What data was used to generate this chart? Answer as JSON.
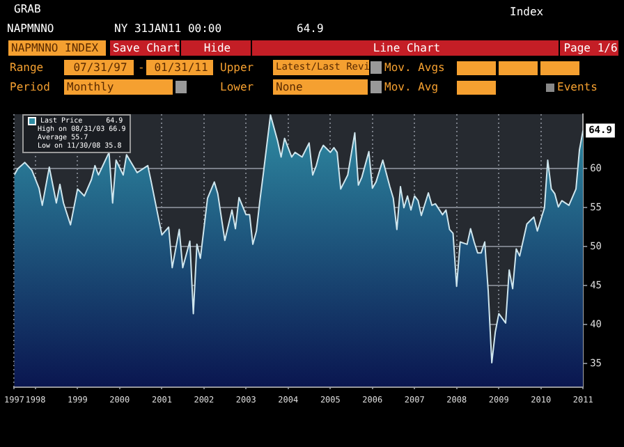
{
  "chart_data": {
    "type": "area",
    "annotations": [
      "GRAB",
      "NAPMNNO",
      "NY 31JAN11 00:00",
      "64.9",
      "Index",
      "NAPMNNO INDEX",
      "Save Chart",
      "Hide",
      "Line Chart",
      "Page 1/6",
      "Range",
      "07/31/97",
      "-",
      "01/31/11",
      "Upper",
      "Latest/Last Revi",
      "Mov. Avgs",
      "Period",
      "Monthly",
      "Lower",
      "None",
      "Mov. Avg",
      "Events",
      "64.9",
      "High on 08/31/03 66.9",
      "Average 55.7",
      "Low on 11/30/08 35.8",
      {
        "text": "64.9",
        "x": "2011-01",
        "y": 64.9
      }
    ],
    "x": [
      "1997-07",
      "1997-08",
      "1997-10",
      "1997-12",
      "1998-02",
      "1998-03",
      "1998-05",
      "1998-07",
      "1998-08",
      "1998-09",
      "1998-11",
      "1999-01",
      "1999-03",
      "1999-05",
      "1999-06",
      "1999-07",
      "1999-10",
      "1999-11",
      "1999-12",
      "2000-02",
      "2000-03",
      "2000-06",
      "2000-09",
      "2000-10",
      "2001-01",
      "2001-03",
      "2001-04",
      "2001-06",
      "2001-07",
      "2001-09",
      "2001-10",
      "2001-11",
      "2001-12",
      "2002-02",
      "2002-04",
      "2002-05",
      "2002-07",
      "2002-09",
      "2002-10",
      "2002-11",
      "2003-01",
      "2003-02",
      "2003-03",
      "2003-04",
      "2003-05",
      "2003-06",
      "2003-08",
      "2003-10",
      "2003-11",
      "2003-12",
      "2004-02",
      "2004-03",
      "2004-05",
      "2004-07",
      "2004-08",
      "2004-09",
      "2004-10",
      "2004-11",
      "2005-01",
      "2005-02",
      "2005-03",
      "2005-04",
      "2005-06",
      "2005-08",
      "2005-09",
      "2005-10",
      "2005-12",
      "2006-01",
      "2006-02",
      "2006-04",
      "2006-06",
      "2006-07",
      "2006-08",
      "2006-09",
      "2006-10",
      "2006-11",
      "2006-12",
      "2007-01",
      "2007-02",
      "2007-03",
      "2007-05",
      "2007-06",
      "2007-07",
      "2007-09",
      "2007-10",
      "2007-11",
      "2007-12",
      "2008-01",
      "2008-02",
      "2008-04",
      "2008-05",
      "2008-06",
      "2008-07",
      "2008-08",
      "2008-09",
      "2008-10",
      "2008-11",
      "2008-12",
      "2009-01",
      "2009-03",
      "2009-04",
      "2009-05",
      "2009-06",
      "2009-07",
      "2009-09",
      "2009-11",
      "2009-12",
      "2010-02",
      "2010-03",
      "2010-04",
      "2010-05",
      "2010-06",
      "2010-07",
      "2010-09",
      "2010-11",
      "2010-12",
      "2011-01"
    ],
    "series": [
      {
        "name": "Last Price",
        "color": "#2f8ca3",
        "values": [
          59.2,
          60.0,
          60.8,
          59.8,
          57.5,
          55.3,
          60.2,
          55.6,
          58.0,
          55.6,
          52.8,
          57.4,
          56.5,
          58.6,
          60.4,
          59.2,
          62.1,
          55.6,
          61.1,
          59.2,
          61.8,
          59.5,
          60.4,
          58.3,
          51.5,
          52.5,
          47.3,
          52.2,
          47.3,
          50.7,
          41.4,
          50.3,
          48.5,
          56.2,
          58.3,
          56.8,
          50.8,
          54.7,
          52.3,
          56.3,
          54.1,
          54.1,
          50.3,
          52.0,
          55.9,
          59.5,
          66.9,
          63.6,
          61.5,
          63.9,
          61.5,
          62.1,
          61.5,
          63.3,
          59.2,
          60.4,
          62.1,
          63.0,
          62.1,
          62.7,
          62.1,
          57.4,
          59.2,
          64.6,
          57.9,
          58.9,
          62.2,
          57.5,
          58.3,
          61.1,
          57.7,
          56.2,
          52.2,
          57.7,
          55.0,
          56.5,
          54.7,
          56.5,
          55.9,
          54.0,
          56.9,
          55.3,
          55.5,
          54.1,
          54.7,
          52.2,
          51.7,
          44.9,
          50.6,
          50.3,
          52.3,
          50.6,
          49.2,
          49.2,
          50.6,
          44.3,
          35.1,
          39.0,
          41.4,
          40.2,
          47.0,
          44.6,
          49.7,
          48.8,
          52.9,
          53.8,
          52.0,
          55.0,
          61.1,
          57.4,
          56.8,
          55.1,
          55.9,
          55.3,
          57.4,
          62.4,
          64.9
        ]
      }
    ],
    "xlim": [
      "1997-07",
      "2011-01"
    ],
    "xticks": [
      {
        "value": "1997-07",
        "label": "1997"
      },
      {
        "value": "1998-01",
        "label": "1998"
      },
      {
        "value": "1999-01",
        "label": "1999"
      },
      {
        "value": "2000-01",
        "label": "2000"
      },
      {
        "value": "2001-01",
        "label": "2001"
      },
      {
        "value": "2002-01",
        "label": "2002"
      },
      {
        "value": "2003-01",
        "label": "2003"
      },
      {
        "value": "2004-01",
        "label": "2004"
      },
      {
        "value": "2005-01",
        "label": "2005"
      },
      {
        "value": "2006-01",
        "label": "2006"
      },
      {
        "value": "2007-01",
        "label": "2007"
      },
      {
        "value": "2008-01",
        "label": "2008"
      },
      {
        "value": "2009-01",
        "label": "2009"
      },
      {
        "value": "2010-01",
        "label": "2010"
      },
      {
        "value": "2011-01",
        "label": "2011"
      }
    ],
    "ylim": [
      32,
      67
    ],
    "yticks": [
      35,
      40,
      45,
      50,
      55,
      60
    ],
    "grid": true,
    "legend": "top left"
  }
}
